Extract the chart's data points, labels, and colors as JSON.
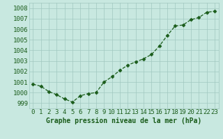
{
  "x": [
    0,
    1,
    2,
    3,
    4,
    5,
    6,
    7,
    8,
    9,
    10,
    11,
    12,
    13,
    14,
    15,
    16,
    17,
    18,
    19,
    20,
    21,
    22,
    23
  ],
  "y": [
    1000.8,
    1000.6,
    1000.1,
    999.8,
    999.4,
    999.1,
    999.7,
    999.9,
    1000.0,
    1001.0,
    1001.5,
    1002.1,
    1002.6,
    1002.9,
    1003.2,
    1003.6,
    1004.4,
    1005.4,
    1006.3,
    1006.4,
    1006.9,
    1007.1,
    1007.6,
    1007.7
  ],
  "line_color": "#1a5c1a",
  "marker_color": "#1a5c1a",
  "bg_color": "#c8e8e0",
  "grid_color": "#a0c8c0",
  "xlabel": "Graphe pression niveau de la mer (hPa)",
  "xlabel_color": "#1a5c1a",
  "tick_color": "#1a5c1a",
  "ylim": [
    998.5,
    1008.5
  ],
  "yticks": [
    999,
    1000,
    1001,
    1002,
    1003,
    1004,
    1005,
    1006,
    1007,
    1008
  ],
  "font_size_label": 7,
  "font_size_tick": 6.5
}
